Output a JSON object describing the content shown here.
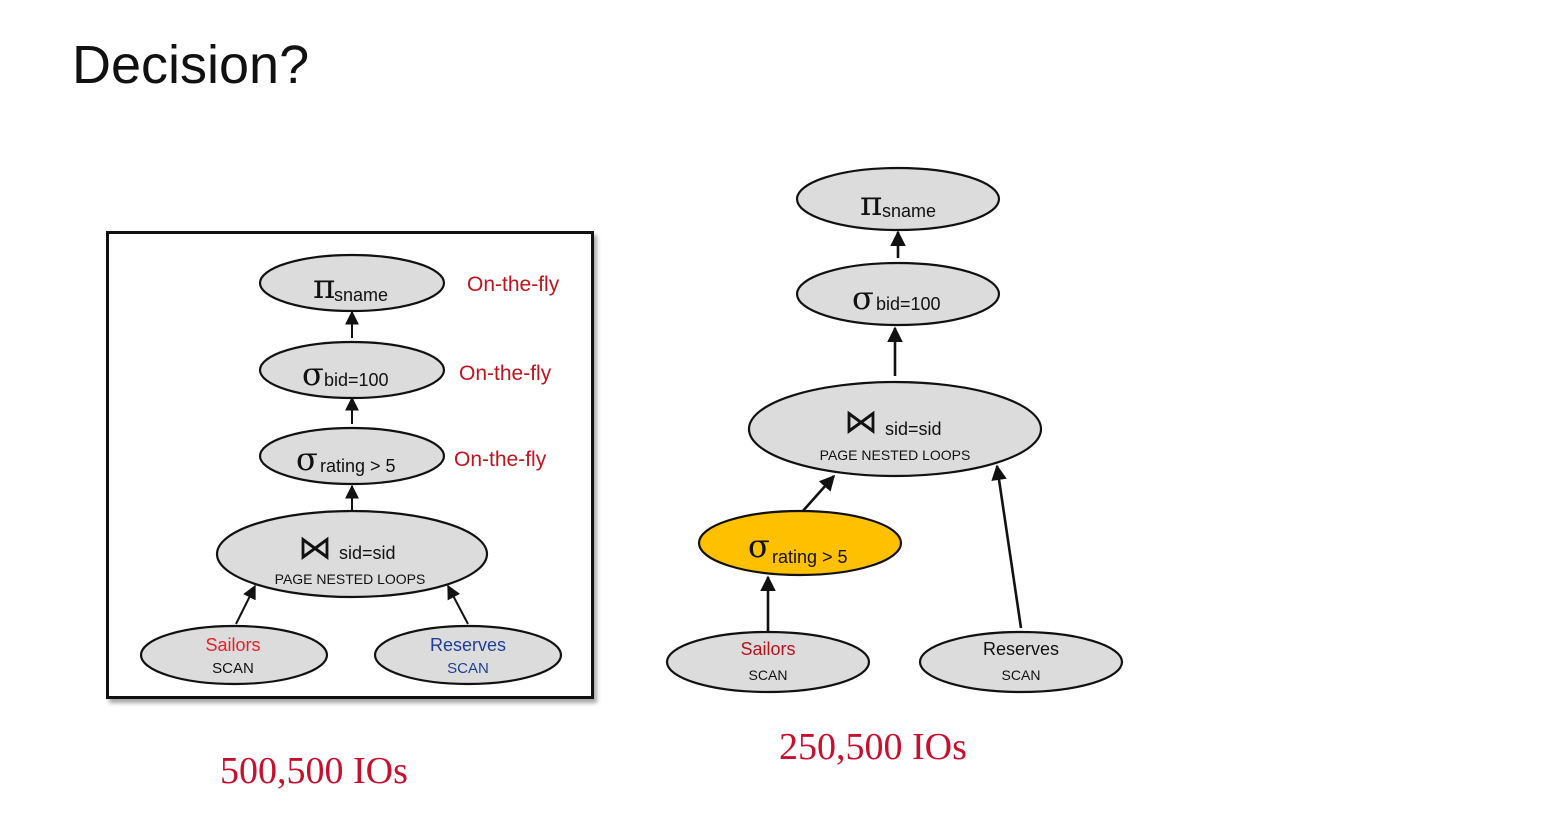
{
  "slide": {
    "title": "Decision?"
  },
  "left_plan": {
    "project": {
      "symbol": "π",
      "subscript": "sname",
      "annotation": "On-the-fly"
    },
    "select_bid": {
      "symbol": "σ",
      "subscript": "bid=100",
      "annotation": "On-the-fly"
    },
    "select_rating": {
      "symbol": "σ",
      "subscript": "rating > 5",
      "annotation": "On-the-fly"
    },
    "join": {
      "symbol": "⋈",
      "subscript": "sid=sid",
      "method": "PAGE NESTED LOOPS"
    },
    "sailors": {
      "name": "Sailors",
      "access": "SCAN"
    },
    "reserves": {
      "name": "Reserves",
      "access": "SCAN"
    },
    "cost": "500,500 IOs"
  },
  "right_plan": {
    "project": {
      "symbol": "π",
      "subscript": "sname"
    },
    "select_bid": {
      "symbol": "σ",
      "subscript": "bid=100"
    },
    "join": {
      "symbol": "⋈",
      "subscript": "sid=sid",
      "method": "PAGE NESTED LOOPS"
    },
    "select_rating": {
      "symbol": "σ",
      "subscript": "rating > 5"
    },
    "sailors": {
      "name": "Sailors",
      "access": "SCAN"
    },
    "reserves": {
      "name": "Reserves",
      "access": "SCAN"
    },
    "cost": "250,500 IOs"
  },
  "colors": {
    "node_fill": "#dcdcdc",
    "highlight_fill": "#ffc000",
    "annotation": "#c0141e",
    "cost": "#c8102e",
    "sailors_label": "#e8202a",
    "reserves_label_left": "#1f3e96"
  }
}
